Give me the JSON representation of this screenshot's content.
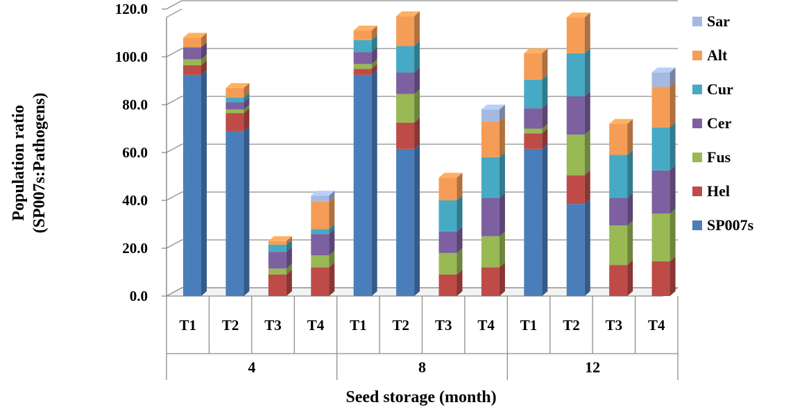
{
  "chart_data": {
    "type": "bar",
    "stacked": true,
    "three_d": true,
    "groups": [
      "4",
      "8",
      "12"
    ],
    "categories": [
      "T1",
      "T2",
      "T3",
      "T4",
      "T1",
      "T2",
      "T3",
      "T4",
      "T1",
      "T2",
      "T3",
      "T4"
    ],
    "series": [
      {
        "name": "SP007s",
        "color": "#4A7EBB",
        "values": [
          92.5,
          69.0,
          0,
          0,
          92.5,
          61.5,
          0,
          0,
          61.5,
          38.5,
          0,
          0
        ]
      },
      {
        "name": "Hel",
        "color": "#BE4B48",
        "values": [
          4.0,
          7.5,
          9.0,
          12.0,
          2.5,
          11.0,
          9.0,
          12.0,
          6.5,
          12.0,
          13.0,
          14.5
        ]
      },
      {
        "name": "Fus",
        "color": "#98B954",
        "values": [
          2.5,
          1.5,
          2.5,
          5.0,
          2.0,
          12.0,
          9.0,
          13.0,
          2.0,
          17.0,
          16.5,
          20.0
        ]
      },
      {
        "name": "Cer",
        "color": "#7D60A0",
        "values": [
          5.0,
          3.0,
          7.0,
          9.0,
          5.0,
          9.0,
          9.0,
          16.0,
          8.5,
          16.0,
          11.5,
          18.0
        ]
      },
      {
        "name": "Cur",
        "color": "#46AAC5",
        "values": [
          0,
          2.0,
          3.0,
          2.0,
          5.0,
          11.0,
          13.0,
          17.0,
          12.0,
          18.0,
          18.0,
          18.0
        ]
      },
      {
        "name": "Alt",
        "color": "#F59D56",
        "values": [
          4.0,
          4.0,
          1.5,
          11.5,
          4.0,
          12.5,
          9.5,
          15.0,
          11.0,
          15.0,
          13.0,
          17.0
        ]
      },
      {
        "name": "Sar",
        "color": "#A5B9E0",
        "values": [
          0,
          0,
          0,
          2.5,
          0,
          0,
          0,
          5.0,
          0,
          0,
          0,
          6.0
        ]
      }
    ],
    "legend_order": [
      "Sar",
      "Alt",
      "Cur",
      "Cer",
      "Fus",
      "Hel",
      "SP007s"
    ],
    "legend_position": "right",
    "ylim": [
      0,
      120
    ],
    "yticks": [
      "0.0",
      "20.0",
      "40.0",
      "60.0",
      "80.0",
      "100.0",
      "120.0"
    ],
    "ylabel_line1": "Population ratio",
    "ylabel_line2": "(SP007s:Pathogens)",
    "xlabel": "Seed storage (month)",
    "grid": true
  }
}
